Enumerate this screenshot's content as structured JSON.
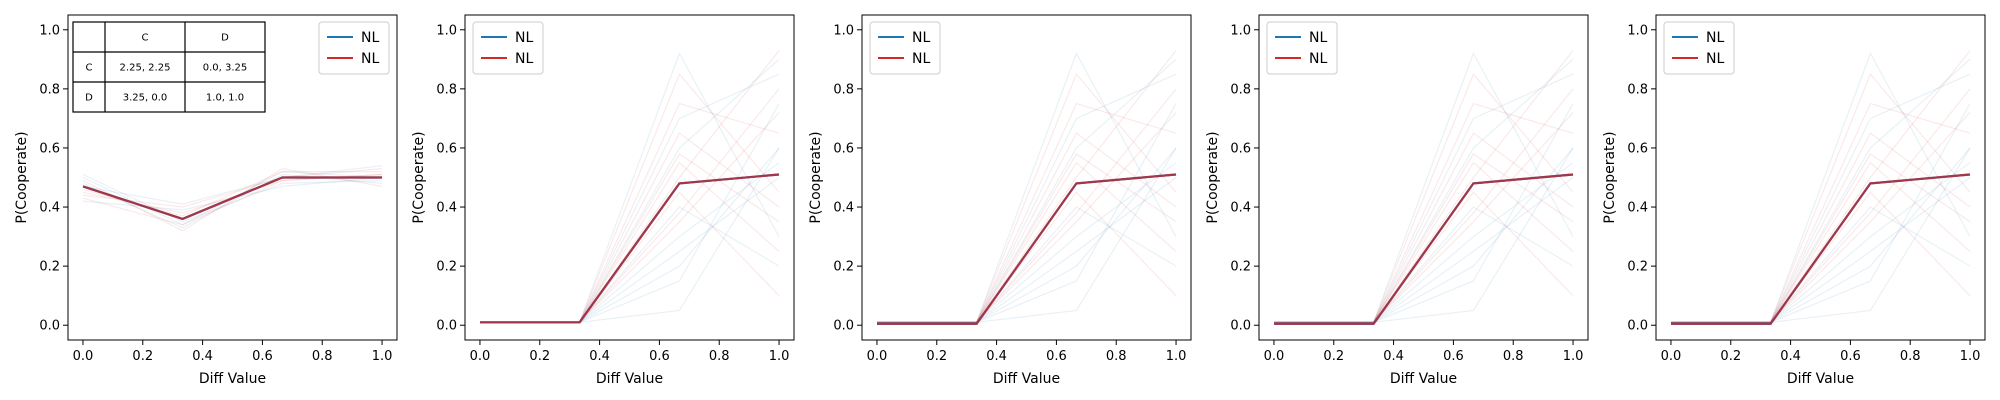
{
  "chart_data": [
    {
      "type": "line",
      "xlabel": "Diff Value",
      "ylabel": "P(Cooperate)",
      "xlim": [
        -0.05,
        1.05
      ],
      "ylim": [
        -0.05,
        1.05
      ],
      "xticks": [
        "0.0",
        "0.2",
        "0.4",
        "0.6",
        "0.8",
        "1.0"
      ],
      "yticks": [
        "0.0",
        "0.2",
        "0.4",
        "0.6",
        "0.8",
        "1.0"
      ],
      "legend_position": "upper right",
      "x": [
        0.0,
        0.333,
        0.667,
        1.0
      ],
      "series": [
        {
          "name": "NL",
          "color": "#1f77b4",
          "values": [
            0.47,
            0.36,
            0.5,
            0.5
          ]
        },
        {
          "name": "NL",
          "color": "#d62728",
          "values": [
            0.47,
            0.36,
            0.5,
            0.5
          ]
        }
      ],
      "faint_lines": [
        [
          0.5,
          0.34,
          0.52,
          0.5
        ],
        [
          0.45,
          0.38,
          0.49,
          0.51
        ],
        [
          0.48,
          0.33,
          0.51,
          0.48
        ],
        [
          0.44,
          0.4,
          0.5,
          0.53
        ],
        [
          0.51,
          0.35,
          0.48,
          0.49
        ],
        [
          0.46,
          0.37,
          0.52,
          0.52
        ],
        [
          0.42,
          0.39,
          0.47,
          0.5
        ],
        [
          0.49,
          0.32,
          0.53,
          0.47
        ],
        [
          0.47,
          0.41,
          0.5,
          0.54
        ],
        [
          0.43,
          0.34,
          0.49,
          0.51
        ]
      ],
      "payoff_table": {
        "col_headers": [
          "C",
          "D"
        ],
        "rows": [
          {
            "label": "C",
            "cells": [
              "2.25, 2.25",
              "0.0, 3.25"
            ]
          },
          {
            "label": "D",
            "cells": [
              "3.25, 0.0",
              "1.0, 1.0"
            ]
          }
        ]
      }
    },
    {
      "type": "line",
      "xlabel": "Diff Value",
      "ylabel": "P(Cooperate)",
      "xlim": [
        -0.05,
        1.05
      ],
      "ylim": [
        -0.05,
        1.05
      ],
      "xticks": [
        "0.0",
        "0.2",
        "0.4",
        "0.6",
        "0.8",
        "1.0"
      ],
      "yticks": [
        "0.0",
        "0.2",
        "0.4",
        "0.6",
        "0.8",
        "1.0"
      ],
      "legend_position": "upper left",
      "x": [
        0.0,
        0.333,
        0.667,
        1.0
      ],
      "series": [
        {
          "name": "NL",
          "color": "#1f77b4",
          "values": [
            0.01,
            0.01,
            0.48,
            0.51
          ]
        },
        {
          "name": "NL",
          "color": "#d62728",
          "values": [
            0.01,
            0.01,
            0.48,
            0.51
          ]
        }
      ],
      "faint_lines": [
        [
          0.01,
          0.01,
          0.92,
          0.3
        ],
        [
          0.01,
          0.01,
          0.85,
          0.45
        ],
        [
          0.01,
          0.01,
          0.6,
          0.9
        ],
        [
          0.01,
          0.01,
          0.35,
          0.72
        ],
        [
          0.01,
          0.01,
          0.2,
          0.6
        ],
        [
          0.01,
          0.01,
          0.55,
          0.25
        ],
        [
          0.01,
          0.01,
          0.7,
          0.85
        ],
        [
          0.01,
          0.01,
          0.45,
          0.1
        ],
        [
          0.01,
          0.01,
          0.3,
          0.55
        ],
        [
          0.01,
          0.01,
          0.65,
          0.4
        ],
        [
          0.01,
          0.01,
          0.15,
          0.75
        ],
        [
          0.01,
          0.01,
          0.5,
          0.93
        ],
        [
          0.01,
          0.01,
          0.4,
          0.2
        ],
        [
          0.01,
          0.01,
          0.75,
          0.65
        ],
        [
          0.01,
          0.01,
          0.25,
          0.5
        ],
        [
          0.01,
          0.01,
          0.58,
          0.35
        ],
        [
          0.01,
          0.01,
          0.05,
          0.6
        ],
        [
          0.01,
          0.01,
          0.38,
          0.8
        ]
      ]
    },
    {
      "type": "line",
      "xlabel": "Diff Value",
      "ylabel": "P(Cooperate)",
      "xlim": [
        -0.05,
        1.05
      ],
      "ylim": [
        -0.05,
        1.05
      ],
      "xticks": [
        "0.0",
        "0.2",
        "0.4",
        "0.6",
        "0.8",
        "1.0"
      ],
      "yticks": [
        "0.0",
        "0.2",
        "0.4",
        "0.6",
        "0.8",
        "1.0"
      ],
      "legend_position": "upper left",
      "x": [
        0.0,
        0.333,
        0.667,
        1.0
      ],
      "series": [
        {
          "name": "NL",
          "color": "#1f77b4",
          "values": [
            0.005,
            0.005,
            0.48,
            0.51
          ]
        },
        {
          "name": "NL",
          "color": "#d62728",
          "values": [
            0.005,
            0.005,
            0.48,
            0.51
          ]
        }
      ],
      "faint_lines": [
        [
          0.01,
          0.01,
          0.92,
          0.3
        ],
        [
          0.01,
          0.01,
          0.85,
          0.45
        ],
        [
          0.01,
          0.01,
          0.6,
          0.9
        ],
        [
          0.01,
          0.01,
          0.35,
          0.72
        ],
        [
          0.01,
          0.01,
          0.2,
          0.6
        ],
        [
          0.01,
          0.01,
          0.55,
          0.25
        ],
        [
          0.01,
          0.01,
          0.7,
          0.85
        ],
        [
          0.01,
          0.01,
          0.45,
          0.1
        ],
        [
          0.01,
          0.01,
          0.3,
          0.55
        ],
        [
          0.01,
          0.01,
          0.65,
          0.4
        ],
        [
          0.01,
          0.01,
          0.15,
          0.75
        ],
        [
          0.01,
          0.01,
          0.5,
          0.93
        ],
        [
          0.01,
          0.01,
          0.4,
          0.2
        ],
        [
          0.01,
          0.01,
          0.75,
          0.65
        ],
        [
          0.01,
          0.01,
          0.25,
          0.5
        ],
        [
          0.01,
          0.01,
          0.58,
          0.35
        ],
        [
          0.01,
          0.01,
          0.05,
          0.6
        ],
        [
          0.01,
          0.01,
          0.38,
          0.8
        ]
      ]
    },
    {
      "type": "line",
      "xlabel": "Diff Value",
      "ylabel": "P(Cooperate)",
      "xlim": [
        -0.05,
        1.05
      ],
      "ylim": [
        -0.05,
        1.05
      ],
      "xticks": [
        "0.0",
        "0.2",
        "0.4",
        "0.6",
        "0.8",
        "1.0"
      ],
      "yticks": [
        "0.0",
        "0.2",
        "0.4",
        "0.6",
        "0.8",
        "1.0"
      ],
      "legend_position": "upper left",
      "x": [
        0.0,
        0.333,
        0.667,
        1.0
      ],
      "series": [
        {
          "name": "NL",
          "color": "#1f77b4",
          "values": [
            0.005,
            0.005,
            0.48,
            0.51
          ]
        },
        {
          "name": "NL",
          "color": "#d62728",
          "values": [
            0.005,
            0.005,
            0.48,
            0.51
          ]
        }
      ],
      "faint_lines": [
        [
          0.01,
          0.01,
          0.92,
          0.3
        ],
        [
          0.01,
          0.01,
          0.85,
          0.45
        ],
        [
          0.01,
          0.01,
          0.6,
          0.9
        ],
        [
          0.01,
          0.01,
          0.35,
          0.72
        ],
        [
          0.01,
          0.01,
          0.2,
          0.6
        ],
        [
          0.01,
          0.01,
          0.55,
          0.25
        ],
        [
          0.01,
          0.01,
          0.7,
          0.85
        ],
        [
          0.01,
          0.01,
          0.45,
          0.1
        ],
        [
          0.01,
          0.01,
          0.3,
          0.55
        ],
        [
          0.01,
          0.01,
          0.65,
          0.4
        ],
        [
          0.01,
          0.01,
          0.15,
          0.75
        ],
        [
          0.01,
          0.01,
          0.5,
          0.93
        ],
        [
          0.01,
          0.01,
          0.4,
          0.2
        ],
        [
          0.01,
          0.01,
          0.75,
          0.65
        ],
        [
          0.01,
          0.01,
          0.25,
          0.5
        ],
        [
          0.01,
          0.01,
          0.58,
          0.35
        ],
        [
          0.01,
          0.01,
          0.05,
          0.6
        ],
        [
          0.01,
          0.01,
          0.38,
          0.8
        ]
      ]
    },
    {
      "type": "line",
      "xlabel": "Diff Value",
      "ylabel": "P(Cooperate)",
      "xlim": [
        -0.05,
        1.05
      ],
      "ylim": [
        -0.05,
        1.05
      ],
      "xticks": [
        "0.0",
        "0.2",
        "0.4",
        "0.6",
        "0.8",
        "1.0"
      ],
      "yticks": [
        "0.0",
        "0.2",
        "0.4",
        "0.6",
        "0.8",
        "1.0"
      ],
      "legend_position": "upper left",
      "x": [
        0.0,
        0.333,
        0.667,
        1.0
      ],
      "series": [
        {
          "name": "NL",
          "color": "#1f77b4",
          "values": [
            0.005,
            0.005,
            0.48,
            0.51
          ]
        },
        {
          "name": "NL",
          "color": "#d62728",
          "values": [
            0.005,
            0.005,
            0.48,
            0.51
          ]
        }
      ],
      "faint_lines": [
        [
          0.01,
          0.01,
          0.92,
          0.3
        ],
        [
          0.01,
          0.01,
          0.85,
          0.45
        ],
        [
          0.01,
          0.01,
          0.6,
          0.9
        ],
        [
          0.01,
          0.01,
          0.35,
          0.72
        ],
        [
          0.01,
          0.01,
          0.2,
          0.6
        ],
        [
          0.01,
          0.01,
          0.55,
          0.25
        ],
        [
          0.01,
          0.01,
          0.7,
          0.85
        ],
        [
          0.01,
          0.01,
          0.45,
          0.1
        ],
        [
          0.01,
          0.01,
          0.3,
          0.55
        ],
        [
          0.01,
          0.01,
          0.65,
          0.4
        ],
        [
          0.01,
          0.01,
          0.15,
          0.75
        ],
        [
          0.01,
          0.01,
          0.5,
          0.93
        ],
        [
          0.01,
          0.01,
          0.4,
          0.2
        ],
        [
          0.01,
          0.01,
          0.75,
          0.65
        ],
        [
          0.01,
          0.01,
          0.25,
          0.5
        ],
        [
          0.01,
          0.01,
          0.58,
          0.35
        ],
        [
          0.01,
          0.01,
          0.05,
          0.6
        ],
        [
          0.01,
          0.01,
          0.38,
          0.8
        ]
      ]
    }
  ]
}
